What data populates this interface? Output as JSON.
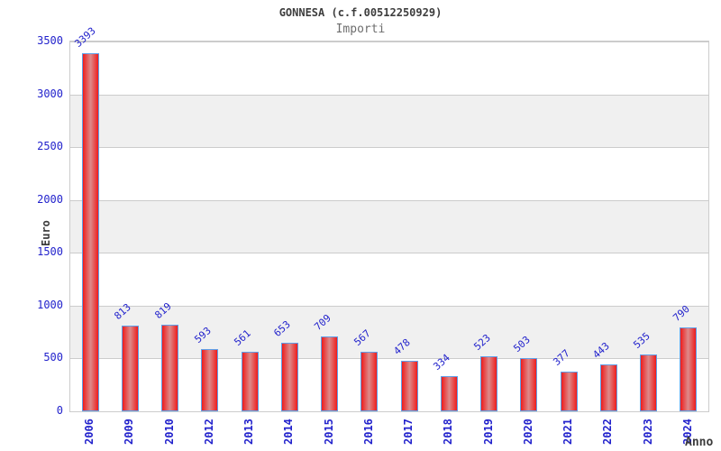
{
  "title": "GONNESA (c.f.00512250929)",
  "subtitle": "Importi",
  "axes": {
    "y_title": "Euro",
    "x_title": "Anno"
  },
  "chart_data": {
    "type": "bar",
    "title": "GONNESA (c.f.00512250929)",
    "subtitle": "Importi",
    "xlabel": "Anno",
    "ylabel": "Euro",
    "categories": [
      "2006",
      "2009",
      "2010",
      "2012",
      "2013",
      "2014",
      "2015",
      "2016",
      "2017",
      "2018",
      "2019",
      "2020",
      "2021",
      "2022",
      "2023",
      "2024"
    ],
    "values": [
      3393,
      813,
      819,
      593,
      561,
      653,
      709,
      567,
      478,
      334,
      523,
      503,
      377,
      443,
      535,
      790
    ],
    "ylim": [
      0,
      3500
    ],
    "yticks": [
      0,
      500,
      1000,
      1500,
      2000,
      2500,
      3000,
      3500
    ],
    "grid": "horizontal gridlines every 500 with alternating shaded bands",
    "legend": "none",
    "bar_labels_shown": true,
    "bar_label_rotation_deg": -42,
    "x_label_rotation_deg": -90
  },
  "colors": {
    "background": "#ffffff",
    "plot_border": "#cccccc",
    "gridline": "#cccccc",
    "band_shade": "#f0f0f0",
    "bar_edge_red": "#ee1c1c",
    "bar_center_red": "#dd8a8a",
    "bar_border_blue": "#5f9fe8",
    "label_blue": "#2222cc",
    "title_text": "#3d3d3d",
    "subtitle_text": "#6e6e6e",
    "axis_title_text": "#3b3b3b"
  }
}
